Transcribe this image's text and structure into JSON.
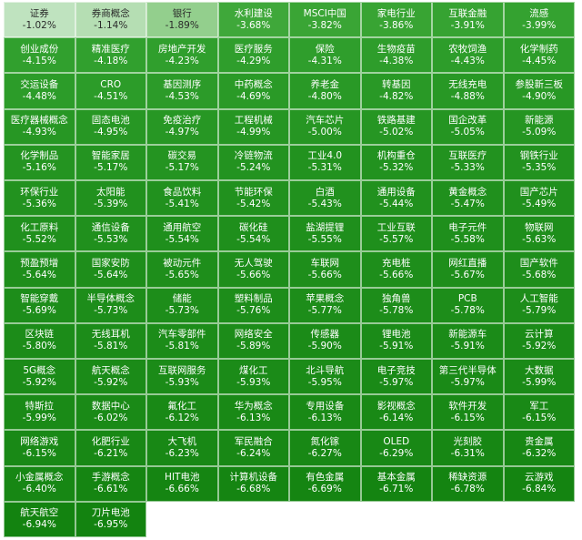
{
  "chart_data": {
    "type": "heatmap",
    "columns": 8,
    "cells": [
      {
        "name": "证券",
        "value": "-1.02%",
        "color": "#bfe3bf"
      },
      {
        "name": "券商概念",
        "value": "-1.14%",
        "color": "#b5deb3"
      },
      {
        "name": "银行",
        "value": "-1.89%",
        "color": "#93cf8d"
      },
      {
        "name": "水利建设",
        "value": "-3.68%",
        "color": "#3fa83a"
      },
      {
        "name": "MSCI中国",
        "value": "-3.82%",
        "color": "#3aa535"
      },
      {
        "name": "家电行业",
        "value": "-3.86%",
        "color": "#38a433"
      },
      {
        "name": "互联金融",
        "value": "-3.91%",
        "color": "#36a332"
      },
      {
        "name": "流感",
        "value": "-3.99%",
        "color": "#34a230"
      },
      {
        "name": "创业成份",
        "value": "-4.15%",
        "color": "#31a02e"
      },
      {
        "name": "精准医疗",
        "value": "-4.18%",
        "color": "#31a02e"
      },
      {
        "name": "房地产开发",
        "value": "-4.23%",
        "color": "#309f2d"
      },
      {
        "name": "医疗服务",
        "value": "-4.29%",
        "color": "#2f9e2c"
      },
      {
        "name": "保险",
        "value": "-4.31%",
        "color": "#2f9e2c"
      },
      {
        "name": "生物疫苗",
        "value": "-4.38%",
        "color": "#2e9d2b"
      },
      {
        "name": "农牧饲渔",
        "value": "-4.43%",
        "color": "#2d9d2a"
      },
      {
        "name": "化学制药",
        "value": "-4.45%",
        "color": "#2d9d2a"
      },
      {
        "name": "交运设备",
        "value": "-4.48%",
        "color": "#2c9c29"
      },
      {
        "name": "CRO",
        "value": "-4.51%",
        "color": "#2c9c29"
      },
      {
        "name": "基因测序",
        "value": "-4.53%",
        "color": "#2c9b29"
      },
      {
        "name": "中药概念",
        "value": "-4.69%",
        "color": "#2a9a27"
      },
      {
        "name": "养老金",
        "value": "-4.80%",
        "color": "#299926"
      },
      {
        "name": "转基因",
        "value": "-4.82%",
        "color": "#299926"
      },
      {
        "name": "无线充电",
        "value": "-4.88%",
        "color": "#289825"
      },
      {
        "name": "参股新三板",
        "value": "-4.90%",
        "color": "#289825"
      },
      {
        "name": "医疗器械概念",
        "value": "-4.93%",
        "color": "#279724"
      },
      {
        "name": "固态电池",
        "value": "-4.95%",
        "color": "#279724"
      },
      {
        "name": "免疫治疗",
        "value": "-4.97%",
        "color": "#279724"
      },
      {
        "name": "工程机械",
        "value": "-4.99%",
        "color": "#269623"
      },
      {
        "name": "汽车芯片",
        "value": "-5.00%",
        "color": "#269623"
      },
      {
        "name": "铁路基建",
        "value": "-5.02%",
        "color": "#269623"
      },
      {
        "name": "国企改革",
        "value": "-5.05%",
        "color": "#259522"
      },
      {
        "name": "新能源",
        "value": "-5.09%",
        "color": "#259522"
      },
      {
        "name": "化学制品",
        "value": "-5.16%",
        "color": "#249421"
      },
      {
        "name": "智能家居",
        "value": "-5.17%",
        "color": "#249421"
      },
      {
        "name": "碳交易",
        "value": "-5.17%",
        "color": "#249421"
      },
      {
        "name": "冷链物流",
        "value": "-5.24%",
        "color": "#239320"
      },
      {
        "name": "工业4.0",
        "value": "-5.31%",
        "color": "#22921f"
      },
      {
        "name": "机构重仓",
        "value": "-5.32%",
        "color": "#22921f"
      },
      {
        "name": "互联医疗",
        "value": "-5.33%",
        "color": "#22921f"
      },
      {
        "name": "钢铁行业",
        "value": "-5.35%",
        "color": "#22921f"
      },
      {
        "name": "环保行业",
        "value": "-5.36%",
        "color": "#22921f"
      },
      {
        "name": "太阳能",
        "value": "-5.39%",
        "color": "#21911e"
      },
      {
        "name": "食品饮料",
        "value": "-5.41%",
        "color": "#21911e"
      },
      {
        "name": "节能环保",
        "value": "-5.42%",
        "color": "#21911e"
      },
      {
        "name": "白酒",
        "value": "-5.43%",
        "color": "#21911e"
      },
      {
        "name": "通用设备",
        "value": "-5.44%",
        "color": "#21911e"
      },
      {
        "name": "黄金概念",
        "value": "-5.47%",
        "color": "#20901d"
      },
      {
        "name": "国产芯片",
        "value": "-5.49%",
        "color": "#20901d"
      },
      {
        "name": "化工原料",
        "value": "-5.52%",
        "color": "#20901d"
      },
      {
        "name": "通信设备",
        "value": "-5.53%",
        "color": "#20901d"
      },
      {
        "name": "通用航空",
        "value": "-5.54%",
        "color": "#1f8f1c"
      },
      {
        "name": "碳化硅",
        "value": "-5.54%",
        "color": "#1f8f1c"
      },
      {
        "name": "盐湖提锂",
        "value": "-5.55%",
        "color": "#1f8f1c"
      },
      {
        "name": "工业互联",
        "value": "-5.57%",
        "color": "#1f8f1c"
      },
      {
        "name": "电子元件",
        "value": "-5.58%",
        "color": "#1f8f1c"
      },
      {
        "name": "物联网",
        "value": "-5.63%",
        "color": "#1e8e1b"
      },
      {
        "name": "预盈预增",
        "value": "-5.64%",
        "color": "#1e8e1b"
      },
      {
        "name": "国家安防",
        "value": "-5.64%",
        "color": "#1e8e1b"
      },
      {
        "name": "被动元件",
        "value": "-5.65%",
        "color": "#1e8e1b"
      },
      {
        "name": "无人驾驶",
        "value": "-5.66%",
        "color": "#1e8e1b"
      },
      {
        "name": "车联网",
        "value": "-5.66%",
        "color": "#1e8e1b"
      },
      {
        "name": "充电桩",
        "value": "-5.66%",
        "color": "#1e8e1b"
      },
      {
        "name": "网红直播",
        "value": "-5.67%",
        "color": "#1e8e1b"
      },
      {
        "name": "国产软件",
        "value": "-5.68%",
        "color": "#1e8e1b"
      },
      {
        "name": "智能穿戴",
        "value": "-5.69%",
        "color": "#1d8d1a"
      },
      {
        "name": "半导体概念",
        "value": "-5.73%",
        "color": "#1d8d1a"
      },
      {
        "name": "储能",
        "value": "-5.73%",
        "color": "#1d8d1a"
      },
      {
        "name": "塑料制品",
        "value": "-5.76%",
        "color": "#1d8d1a"
      },
      {
        "name": "苹果概念",
        "value": "-5.77%",
        "color": "#1d8d1a"
      },
      {
        "name": "独角兽",
        "value": "-5.78%",
        "color": "#1d8d1a"
      },
      {
        "name": "PCB",
        "value": "-5.78%",
        "color": "#1d8d1a"
      },
      {
        "name": "人工智能",
        "value": "-5.79%",
        "color": "#1d8d1a"
      },
      {
        "name": "区块链",
        "value": "-5.80%",
        "color": "#1c8c19"
      },
      {
        "name": "无线耳机",
        "value": "-5.81%",
        "color": "#1c8c19"
      },
      {
        "name": "汽车零部件",
        "value": "-5.81%",
        "color": "#1c8c19"
      },
      {
        "name": "网络安全",
        "value": "-5.89%",
        "color": "#1c8c19"
      },
      {
        "name": "传感器",
        "value": "-5.90%",
        "color": "#1b8b18"
      },
      {
        "name": "锂电池",
        "value": "-5.91%",
        "color": "#1b8b18"
      },
      {
        "name": "新能源车",
        "value": "-5.91%",
        "color": "#1b8b18"
      },
      {
        "name": "云计算",
        "value": "-5.92%",
        "color": "#1b8b18"
      },
      {
        "name": "5G概念",
        "value": "-5.92%",
        "color": "#1b8b18"
      },
      {
        "name": "航天概念",
        "value": "-5.92%",
        "color": "#1b8b18"
      },
      {
        "name": "互联网服务",
        "value": "-5.93%",
        "color": "#1b8b18"
      },
      {
        "name": "煤化工",
        "value": "-5.93%",
        "color": "#1b8b18"
      },
      {
        "name": "北斗导航",
        "value": "-5.95%",
        "color": "#1b8b18"
      },
      {
        "name": "电子竞技",
        "value": "-5.97%",
        "color": "#1a8a17"
      },
      {
        "name": "第三代半导体",
        "value": "-5.97%",
        "color": "#1a8a17"
      },
      {
        "name": "大数据",
        "value": "-5.99%",
        "color": "#1a8a17"
      },
      {
        "name": "特斯拉",
        "value": "-5.99%",
        "color": "#1a8a17"
      },
      {
        "name": "数据中心",
        "value": "-6.02%",
        "color": "#1a8a17"
      },
      {
        "name": "氟化工",
        "value": "-6.12%",
        "color": "#198916"
      },
      {
        "name": "华为概念",
        "value": "-6.13%",
        "color": "#198916"
      },
      {
        "name": "专用设备",
        "value": "-6.13%",
        "color": "#198916"
      },
      {
        "name": "影视概念",
        "value": "-6.14%",
        "color": "#198916"
      },
      {
        "name": "软件开发",
        "value": "-6.15%",
        "color": "#198916"
      },
      {
        "name": "军工",
        "value": "-6.15%",
        "color": "#198916"
      },
      {
        "name": "网络游戏",
        "value": "-6.15%",
        "color": "#198916"
      },
      {
        "name": "化肥行业",
        "value": "-6.21%",
        "color": "#188815"
      },
      {
        "name": "大飞机",
        "value": "-6.23%",
        "color": "#188815"
      },
      {
        "name": "军民融合",
        "value": "-6.24%",
        "color": "#188815"
      },
      {
        "name": "氮化镓",
        "value": "-6.27%",
        "color": "#188815"
      },
      {
        "name": "OLED",
        "value": "-6.29%",
        "color": "#188815"
      },
      {
        "name": "光刻胶",
        "value": "-6.31%",
        "color": "#178714"
      },
      {
        "name": "贵金属",
        "value": "-6.32%",
        "color": "#178714"
      },
      {
        "name": "小金属概念",
        "value": "-6.40%",
        "color": "#178714"
      },
      {
        "name": "手游概念",
        "value": "-6.61%",
        "color": "#158512"
      },
      {
        "name": "HIT电池",
        "value": "-6.66%",
        "color": "#158512"
      },
      {
        "name": "计算机设备",
        "value": "-6.68%",
        "color": "#158512"
      },
      {
        "name": "有色金属",
        "value": "-6.69%",
        "color": "#158512"
      },
      {
        "name": "基本金属",
        "value": "-6.71%",
        "color": "#148411"
      },
      {
        "name": "稀缺资源",
        "value": "-6.78%",
        "color": "#148411"
      },
      {
        "name": "云游戏",
        "value": "-6.84%",
        "color": "#148411"
      },
      {
        "name": "航天航空",
        "value": "-6.94%",
        "color": "#138310"
      },
      {
        "name": "刀片电池",
        "value": "-6.95%",
        "color": "#138310"
      }
    ]
  }
}
